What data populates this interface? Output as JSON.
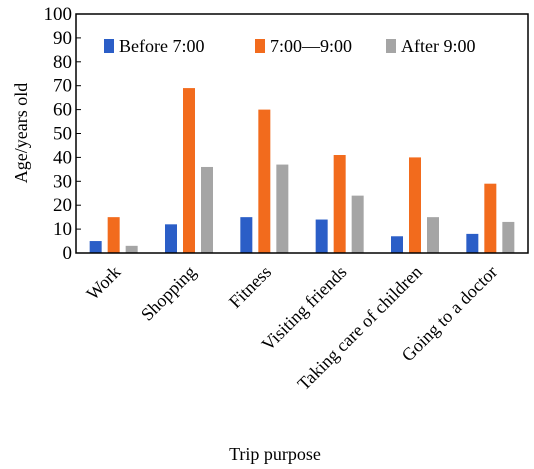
{
  "chart_data": {
    "type": "bar",
    "title": "",
    "xlabel": "Trip purpose",
    "ylabel": "Age/years old",
    "ylim": [
      0,
      100
    ],
    "yticks": [
      0,
      10,
      20,
      30,
      40,
      50,
      60,
      70,
      80,
      90,
      100
    ],
    "categories": [
      "Work",
      "Shopping",
      "Fitness",
      "Visiting friends",
      "Taking care of children",
      "Going to a doctor"
    ],
    "series": [
      {
        "name": "Before 7:00",
        "color": "#2b5ec7",
        "values": [
          5,
          12,
          15,
          14,
          7,
          8
        ]
      },
      {
        "name": "7:00—9:00",
        "color": "#f26b1d",
        "values": [
          15,
          69,
          60,
          41,
          40,
          29
        ]
      },
      {
        "name": "After 9:00",
        "color": "#a5a5a5",
        "values": [
          3,
          36,
          37,
          24,
          15,
          13
        ]
      }
    ],
    "legend_position": "top",
    "grid": false
  }
}
